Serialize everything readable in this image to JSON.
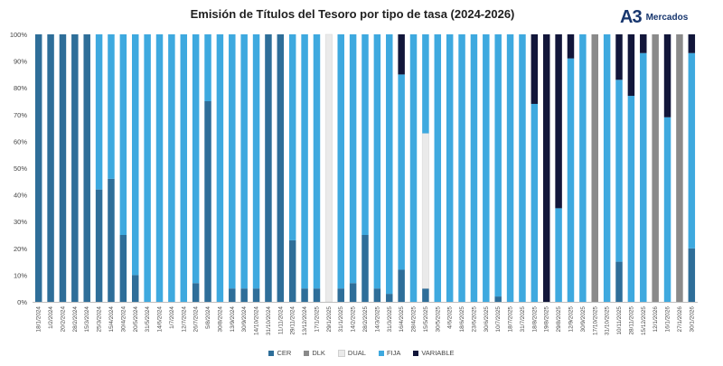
{
  "brand": {
    "mark": "A3",
    "name": "Mercados",
    "color": "#17366e"
  },
  "chart_data": {
    "type": "bar",
    "stacked": true,
    "title": "Emisión de Títulos del Tesoro por tipo de tasa (2024-2026)",
    "xlabel": "",
    "ylabel": "",
    "ylim": [
      0,
      100
    ],
    "yticks": [
      "0%",
      "10%",
      "20%",
      "30%",
      "40%",
      "50%",
      "60%",
      "70%",
      "80%",
      "90%",
      "100%"
    ],
    "grid": false,
    "legend_position": "bottom",
    "categories": [
      "18/1/2024",
      "1/2/2024",
      "20/2/2024",
      "28/2/2024",
      "15/3/2024",
      "25/3/2024",
      "15/4/2024",
      "30/4/2024",
      "20/5/2024",
      "31/5/2024",
      "14/6/2024",
      "1/7/2024",
      "12/7/2024",
      "26/7/2024",
      "5/8/2024",
      "30/8/2024",
      "13/9/2024",
      "30/9/2024",
      "14/10/2024",
      "31/10/2024",
      "11/11/2024",
      "29/11/2024",
      "13/12/2024",
      "17/1/2025",
      "29/1/2025",
      "31/1/2025",
      "14/2/2025",
      "28/2/2025",
      "14/3/2025",
      "31/3/2025",
      "16/4/2025",
      "28/4/2025",
      "15/5/2025",
      "30/5/2025",
      "4/6/2025",
      "18/6/2025",
      "23/6/2025",
      "30/6/2025",
      "10/7/2025",
      "18/7/2025",
      "31/7/2025",
      "18/8/2025",
      "19/8/2025",
      "29/8/2025",
      "12/9/2025",
      "30/9/2025",
      "17/10/2025",
      "31/10/2025",
      "10/11/2025",
      "28/11/2025",
      "15/12/2025",
      "12/1/2026",
      "16/1/2026",
      "27/1/2026",
      "30/1/2026"
    ],
    "series": [
      {
        "name": "CER",
        "color": "#2e6e99",
        "values": [
          100,
          100,
          100,
          100,
          100,
          42,
          46,
          25,
          10,
          0,
          0,
          0,
          0,
          7,
          75,
          0,
          5,
          5,
          5,
          100,
          100,
          23,
          5,
          5,
          0,
          5,
          7,
          25,
          5,
          3,
          12,
          0,
          5,
          0,
          0,
          0,
          0,
          0,
          2,
          0,
          0,
          0,
          0,
          0,
          0,
          0,
          0,
          0,
          15,
          0,
          0,
          0,
          0,
          0,
          20
        ]
      },
      {
        "name": "DLK",
        "color": "#8a8a8a",
        "values": [
          0,
          0,
          0,
          0,
          0,
          0,
          0,
          0,
          0,
          0,
          0,
          0,
          0,
          0,
          0,
          0,
          0,
          0,
          0,
          0,
          0,
          0,
          0,
          0,
          0,
          0,
          0,
          0,
          0,
          0,
          0,
          0,
          0,
          0,
          0,
          0,
          0,
          0,
          0,
          0,
          0,
          0,
          0,
          0,
          0,
          0,
          100,
          0,
          0,
          0,
          0,
          100,
          0,
          100,
          0
        ]
      },
      {
        "name": "DUAL",
        "color": "#eaeaea",
        "values": [
          0,
          0,
          0,
          0,
          0,
          0,
          0,
          0,
          0,
          0,
          0,
          0,
          0,
          0,
          0,
          0,
          0,
          0,
          0,
          0,
          0,
          0,
          0,
          0,
          100,
          0,
          0,
          0,
          0,
          0,
          0,
          0,
          58,
          0,
          0,
          0,
          0,
          0,
          0,
          0,
          0,
          0,
          0,
          0,
          0,
          0,
          0,
          0,
          0,
          0,
          0,
          0,
          0,
          0,
          0
        ]
      },
      {
        "name": "FIJA",
        "color": "#3ea9df",
        "values": [
          0,
          0,
          0,
          0,
          0,
          58,
          54,
          75,
          90,
          100,
          100,
          100,
          100,
          93,
          25,
          100,
          95,
          95,
          95,
          0,
          0,
          77,
          95,
          95,
          0,
          95,
          93,
          75,
          95,
          97,
          73,
          100,
          37,
          100,
          100,
          100,
          100,
          100,
          98,
          100,
          100,
          74,
          0,
          35,
          91,
          100,
          0,
          100,
          68,
          77,
          93,
          0,
          69,
          0,
          73
        ]
      },
      {
        "name": "VARIABLE",
        "color": "#12163a",
        "values": [
          0,
          0,
          0,
          0,
          0,
          0,
          0,
          0,
          0,
          0,
          0,
          0,
          0,
          0,
          0,
          0,
          0,
          0,
          0,
          0,
          0,
          0,
          0,
          0,
          0,
          0,
          0,
          0,
          0,
          0,
          15,
          0,
          0,
          0,
          0,
          0,
          0,
          0,
          0,
          0,
          0,
          26,
          100,
          65,
          9,
          0,
          0,
          0,
          17,
          23,
          7,
          0,
          31,
          0,
          7
        ]
      }
    ]
  }
}
